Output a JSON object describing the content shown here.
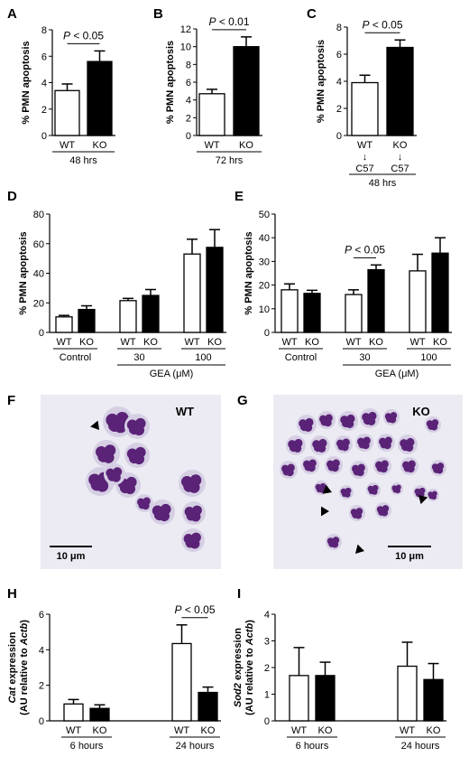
{
  "colors": {
    "wt_fill": "#ffffff",
    "ko_fill": "#000000",
    "axis": "#000000"
  },
  "chart_data": [
    {
      "panel": "A",
      "type": "bar",
      "ylabel": "% PMN apoptosis",
      "ylim": [
        0,
        8
      ],
      "ticks": [
        0,
        2,
        4,
        6,
        8
      ],
      "bars": [
        {
          "label": "WT",
          "value": 3.4,
          "err": 0.5,
          "fill": "wt"
        },
        {
          "label": "KO",
          "value": 5.6,
          "err": 0.8,
          "fill": "ko"
        }
      ],
      "groups": [
        {
          "label": "48 hrs",
          "from": 0,
          "to": 1
        }
      ],
      "sig": [
        {
          "text": "P < 0.05",
          "from": 0,
          "to": 1
        }
      ]
    },
    {
      "panel": "B",
      "type": "bar",
      "ylabel": "% PMN apoptosis",
      "ylim": [
        0,
        12
      ],
      "ticks": [
        0,
        2,
        4,
        6,
        8,
        10,
        12
      ],
      "bars": [
        {
          "label": "WT",
          "value": 4.7,
          "err": 0.5,
          "fill": "wt"
        },
        {
          "label": "KO",
          "value": 10.0,
          "err": 1.1,
          "fill": "ko"
        }
      ],
      "groups": [
        {
          "label": "72 hrs",
          "from": 0,
          "to": 1
        }
      ],
      "sig": [
        {
          "text": "P < 0.01",
          "from": 0,
          "to": 1
        }
      ]
    },
    {
      "panel": "C",
      "type": "bar",
      "ylabel": "% PMN apoptosis",
      "ylim": [
        0,
        8
      ],
      "ticks": [
        0,
        2,
        4,
        6,
        8
      ],
      "bars": [
        {
          "label": "WT",
          "value": 3.9,
          "err": 0.55,
          "fill": "wt",
          "sub": [
            "↓",
            "C57"
          ]
        },
        {
          "label": "KO",
          "value": 6.5,
          "err": 0.55,
          "fill": "ko",
          "sub": [
            "↓",
            "C57"
          ]
        }
      ],
      "groups": [
        {
          "label": "48 hrs",
          "from": 0,
          "to": 1
        }
      ],
      "sig": [
        {
          "text": "P < 0.05",
          "from": 0,
          "to": 1
        }
      ]
    },
    {
      "panel": "D",
      "type": "bar",
      "ylabel": "% PMN apoptosis",
      "xlabel": "GEA (μM)",
      "ylim": [
        0,
        80
      ],
      "ticks": [
        0,
        20,
        40,
        60,
        80
      ],
      "bars": [
        {
          "label": "WT",
          "value": 10.5,
          "err": 1.0,
          "fill": "wt"
        },
        {
          "label": "KO",
          "value": 15.5,
          "err": 2.5,
          "fill": "ko"
        },
        {
          "label": "WT",
          "value": 21.5,
          "err": 1.5,
          "fill": "wt"
        },
        {
          "label": "KO",
          "value": 25.0,
          "err": 4.0,
          "fill": "ko"
        },
        {
          "label": "WT",
          "value": 53.0,
          "err": 10.0,
          "fill": "wt"
        },
        {
          "label": "KO",
          "value": 57.5,
          "err": 12.0,
          "fill": "ko"
        }
      ],
      "groups": [
        {
          "label": "Control",
          "from": 0,
          "to": 1
        },
        {
          "label": "30",
          "from": 2,
          "to": 3
        },
        {
          "label": "100",
          "from": 4,
          "to": 5
        }
      ],
      "sig": []
    },
    {
      "panel": "E",
      "type": "bar",
      "ylabel": "% PMN apoptosis",
      "xlabel": "GEA (μM)",
      "ylim": [
        0,
        50
      ],
      "ticks": [
        0,
        10,
        20,
        30,
        40,
        50
      ],
      "bars": [
        {
          "label": "WT",
          "value": 18.0,
          "err": 2.5,
          "fill": "wt"
        },
        {
          "label": "KO",
          "value": 16.5,
          "err": 1.3,
          "fill": "ko"
        },
        {
          "label": "WT",
          "value": 16.0,
          "err": 2.0,
          "fill": "wt"
        },
        {
          "label": "KO",
          "value": 26.5,
          "err": 2.0,
          "fill": "ko"
        },
        {
          "label": "WT",
          "value": 26.0,
          "err": 7.0,
          "fill": "wt"
        },
        {
          "label": "KO",
          "value": 33.5,
          "err": 6.5,
          "fill": "ko"
        }
      ],
      "groups": [
        {
          "label": "Control",
          "from": 0,
          "to": 1
        },
        {
          "label": "30",
          "from": 2,
          "to": 3
        },
        {
          "label": "100",
          "from": 4,
          "to": 5
        }
      ],
      "sig": [
        {
          "text": "P < 0.05",
          "from": 2,
          "to": 3
        }
      ]
    },
    {
      "panel": "H",
      "type": "bar",
      "ylabel_italic": "Cat",
      "ylabel_rest": " expression",
      "ylabel2_pre": "(AU relative to ",
      "ylabel2_italic": "Actb",
      "ylabel2_post": ")",
      "ylim": [
        0,
        6
      ],
      "ticks": [
        0,
        2,
        4,
        6
      ],
      "bars": [
        {
          "label": "WT",
          "value": 0.95,
          "err": 0.25,
          "fill": "wt"
        },
        {
          "label": "KO",
          "value": 0.7,
          "err": 0.2,
          "fill": "ko"
        },
        {
          "label": "WT",
          "value": 4.35,
          "err": 1.05,
          "fill": "wt"
        },
        {
          "label": "KO",
          "value": 1.6,
          "err": 0.3,
          "fill": "ko"
        }
      ],
      "groups": [
        {
          "label": "6 hours",
          "from": 0,
          "to": 1
        },
        {
          "label": "24 hours",
          "from": 2,
          "to": 3
        }
      ],
      "sig": [
        {
          "text": "P < 0.05",
          "from": 2,
          "to": 3
        }
      ]
    },
    {
      "panel": "I",
      "type": "bar",
      "ylabel_italic": "Sod2",
      "ylabel_rest": " expression",
      "ylabel2_pre": "(AU relative to ",
      "ylabel2_italic": "Actb",
      "ylabel2_post": ")",
      "ylim": [
        0,
        4
      ],
      "ticks": [
        0,
        1,
        2,
        3,
        4
      ],
      "bars": [
        {
          "label": "WT",
          "value": 1.7,
          "err": 1.05,
          "fill": "wt"
        },
        {
          "label": "KO",
          "value": 1.7,
          "err": 0.5,
          "fill": "ko"
        },
        {
          "label": "WT",
          "value": 2.05,
          "err": 0.9,
          "fill": "wt"
        },
        {
          "label": "KO",
          "value": 1.55,
          "err": 0.6,
          "fill": "ko"
        }
      ],
      "groups": [
        {
          "label": "6 hours",
          "from": 0,
          "to": 1
        },
        {
          "label": "24 hours",
          "from": 2,
          "to": 3
        }
      ],
      "sig": []
    }
  ],
  "micrographs": [
    {
      "panel": "F",
      "label": "WT",
      "scalebar": "10 μm"
    },
    {
      "panel": "G",
      "label": "KO",
      "scalebar": "10 μm"
    }
  ]
}
